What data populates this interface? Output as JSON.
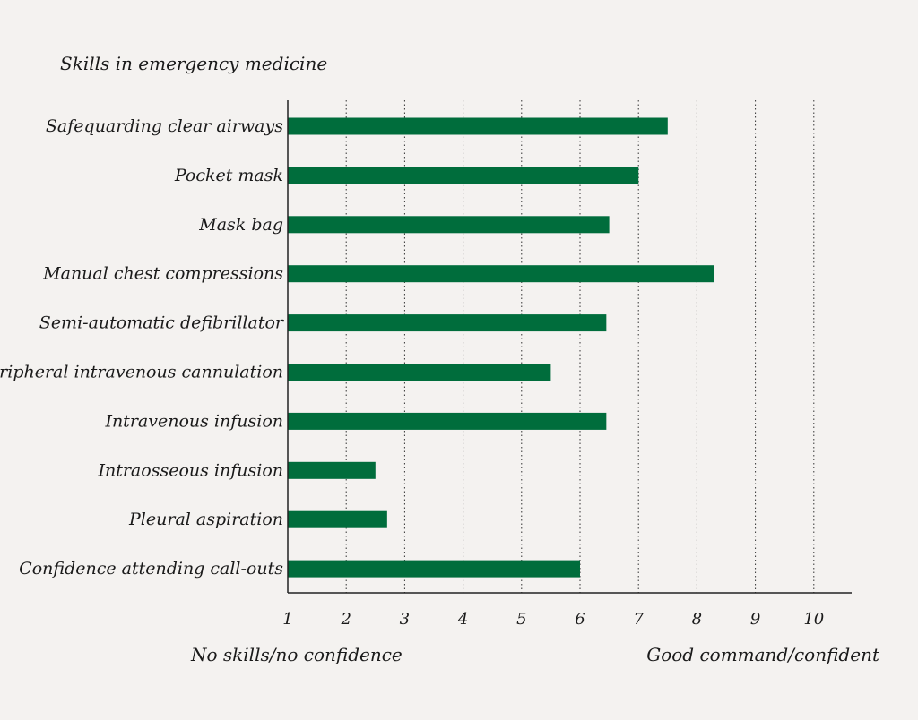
{
  "chart_data": {
    "type": "bar",
    "orientation": "horizontal",
    "title": "Skills in emergency medicine",
    "categories": [
      "Safequarding clear airways",
      "Pocket mask",
      "Mask bag",
      "Manual chest compressions",
      "Semi-automatic defibrillator",
      "Peripheral intravenous cannulation",
      "Intravenous infusion",
      "Intraosseous infusion",
      "Pleural aspiration",
      "Confidence attending call-outs"
    ],
    "values": [
      7.5,
      7.0,
      6.5,
      8.3,
      6.45,
      5.5,
      6.45,
      2.5,
      2.7,
      6.0
    ],
    "xlim": [
      1,
      10
    ],
    "xticks": [
      "1",
      "2",
      "3",
      "4",
      "5",
      "6",
      "7",
      "8",
      "9",
      "10"
    ],
    "low_label": "No skills/no confidence",
    "high_label": "Good command/confident",
    "grid": "vertical dotted",
    "bar_color": "#006d3c"
  }
}
